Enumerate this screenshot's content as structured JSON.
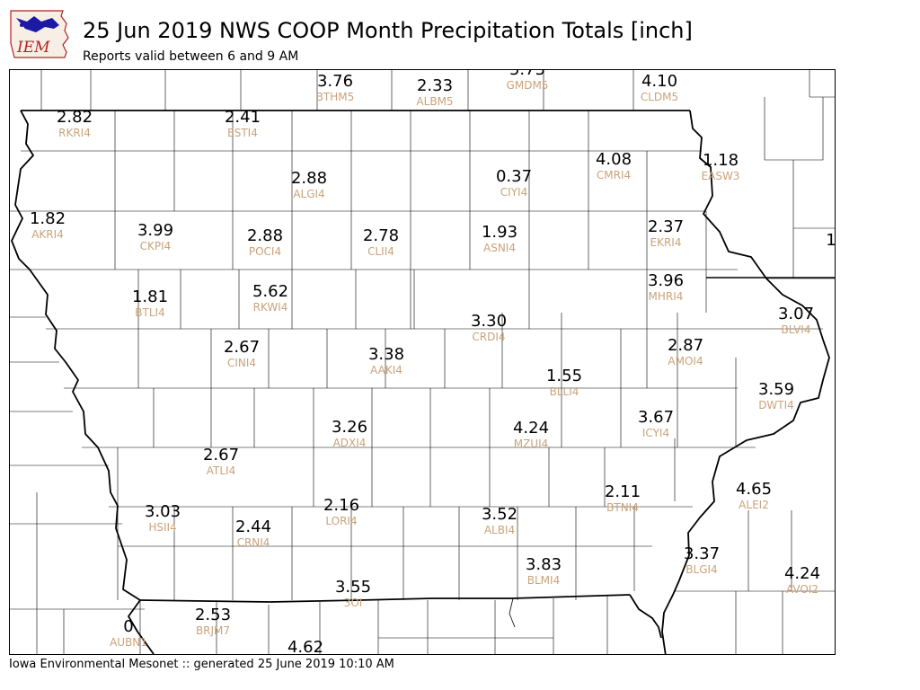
{
  "header": {
    "logo_text": "IEM",
    "title": "25 Jun 2019 NWS COOP Month Precipitation Totals [inch]",
    "subtitle": "Reports valid between 6 and 9 AM"
  },
  "footer": {
    "text": "Iowa Environmental Mesonet :: generated 25 June 2019 10:10 AM"
  },
  "colors": {
    "value_text": "#000000",
    "station_id_text": "#c9a37a",
    "county_lines": "#000000",
    "logo_blue": "#1a1aa6",
    "logo_red": "#b22222"
  },
  "stations": [
    {
      "id": "BTHM5",
      "value": "3.76"
    },
    {
      "id": "ALBM5",
      "value": "2.33"
    },
    {
      "id": "GMDM5",
      "value": "5.75"
    },
    {
      "id": "CLDM5",
      "value": "4.10"
    },
    {
      "id": "RKRI4",
      "value": "2.82"
    },
    {
      "id": "ESTI4",
      "value": "2.41"
    },
    {
      "id": "ALGI4",
      "value": "2.88"
    },
    {
      "id": "CIYI4",
      "value": "0.37"
    },
    {
      "id": "CMRI4",
      "value": "4.08"
    },
    {
      "id": "EASW3",
      "value": "1.18"
    },
    {
      "id": "AKRI4",
      "value": "1.82"
    },
    {
      "id": "CKPI4",
      "value": "3.99"
    },
    {
      "id": "POCI4",
      "value": "2.88"
    },
    {
      "id": "CLII4",
      "value": "2.78"
    },
    {
      "id": "ASNI4",
      "value": "1.93"
    },
    {
      "id": "EKRI4",
      "value": "2.37"
    },
    {
      "id": "",
      "value": "1"
    },
    {
      "id": "BTLI4",
      "value": "1.81"
    },
    {
      "id": "RKWI4",
      "value": "5.62"
    },
    {
      "id": "MHRI4",
      "value": "3.96"
    },
    {
      "id": "BLVI4",
      "value": "3.07"
    },
    {
      "id": "CRDI4",
      "value": "3.30"
    },
    {
      "id": "CINI4",
      "value": "2.67"
    },
    {
      "id": "AAKI4",
      "value": "3.38"
    },
    {
      "id": "AMOI4",
      "value": "2.87"
    },
    {
      "id": "BLLI4",
      "value": "1.55"
    },
    {
      "id": "DWTI4",
      "value": "3.59"
    },
    {
      "id": "ADXI4",
      "value": "3.26"
    },
    {
      "id": "MZUI4",
      "value": "4.24"
    },
    {
      "id": "ICYI4",
      "value": "3.67"
    },
    {
      "id": "ATLI4",
      "value": "2.67"
    },
    {
      "id": "BTNI4",
      "value": "2.11"
    },
    {
      "id": "ALEI2",
      "value": "4.65"
    },
    {
      "id": "HSII4",
      "value": "3.03"
    },
    {
      "id": "CRNI4",
      "value": "2.44"
    },
    {
      "id": "LORI4",
      "value": "2.16"
    },
    {
      "id": "ALBI4",
      "value": "3.52"
    },
    {
      "id": "BLMI4",
      "value": "3.83"
    },
    {
      "id": "BLGI4",
      "value": "3.37"
    },
    {
      "id": "AVOI2",
      "value": "4.24"
    },
    {
      "id": "3OI",
      "value": "3.55"
    },
    {
      "id": "AUBN1",
      "value": "0"
    },
    {
      "id": "BRJM7",
      "value": "2.53"
    },
    {
      "id": "",
      "value": "4.62"
    }
  ]
}
